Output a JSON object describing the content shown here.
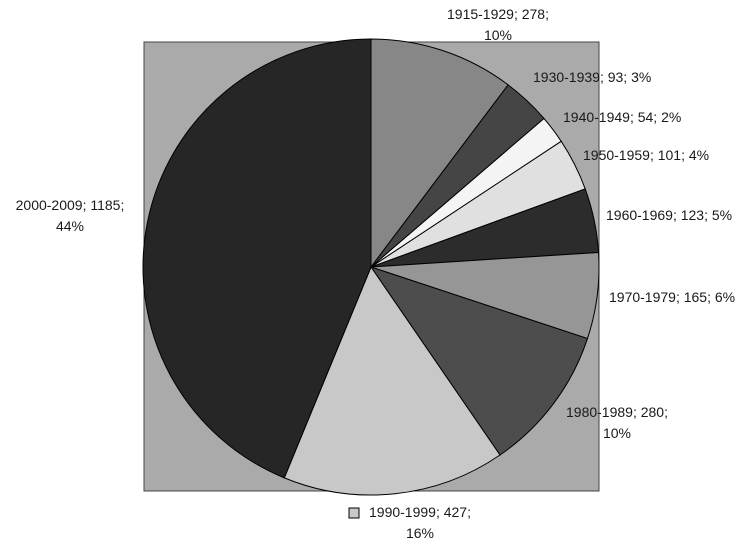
{
  "chart_data": {
    "type": "pie",
    "title": "",
    "categories": [
      "1915-1929",
      "1930-1939",
      "1940-1949",
      "1950-1959",
      "1960-1969",
      "1970-1979",
      "1980-1989",
      "1990-1999",
      "2000-2009"
    ],
    "values": [
      278,
      93,
      54,
      101,
      123,
      165,
      280,
      427,
      1185
    ],
    "percents": [
      10,
      3,
      2,
      4,
      5,
      6,
      10,
      16,
      44
    ],
    "labels": [
      [
        "1915-1929; 278;",
        "10%"
      ],
      [
        "1930-1939; 93; 3%"
      ],
      [
        "1940-1949; 54; 2%"
      ],
      [
        "1950-1959; 101; 4%"
      ],
      [
        "1960-1969; 123; 5%"
      ],
      [
        "1970-1979; 165; 6%"
      ],
      [
        "1980-1989; 280;",
        "10%"
      ],
      [
        "1990-1999; 427;",
        "16%"
      ],
      [
        "2000-2009; 1185;",
        "44%"
      ]
    ],
    "colors": [
      "#878787",
      "#454545",
      "#f4f4f4",
      "#e0e0e0",
      "#2c2c2c",
      "#969696",
      "#4d4d4d",
      "#c8c8c8",
      "#262626"
    ],
    "plot_background": "#aaaaaa",
    "legend_key": "1990-1999"
  }
}
